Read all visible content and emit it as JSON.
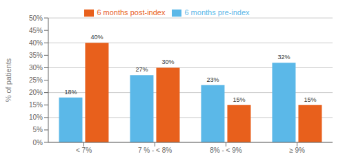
{
  "chart_data": {
    "type": "bar",
    "categories": [
      "< 7%",
      "7 % - < 8%",
      "8% - < 9%",
      "≥ 9%"
    ],
    "series": [
      {
        "name": "6 months pre-index",
        "color": "#5BB8E8",
        "values": [
          18,
          27,
          23,
          32
        ],
        "value_labels": [
          "18%",
          "27%",
          "23%",
          "32%"
        ]
      },
      {
        "name": "6 months post-index",
        "color": "#E8601C",
        "values": [
          40,
          30,
          15,
          15
        ],
        "value_labels": [
          "40%",
          "30%",
          "15%",
          "15%"
        ]
      }
    ],
    "ylabel": "% of patients",
    "ylim": [
      0,
      50
    ],
    "yticks": [
      {
        "value": 0,
        "label": "0%"
      },
      {
        "value": 5,
        "label": "5%"
      },
      {
        "value": 10,
        "label": "10%"
      },
      {
        "value": 15,
        "label": "15%"
      },
      {
        "value": 20,
        "label": "20%"
      },
      {
        "value": 25,
        "label": "25%"
      },
      {
        "value": 30,
        "label": "30%"
      },
      {
        "value": 35,
        "label": "35%"
      },
      {
        "value": 40,
        "label": "40%"
      },
      {
        "value": 45,
        "label": "45%"
      },
      {
        "value": 50,
        "label": "50%"
      }
    ],
    "grid": true,
    "legend": "top",
    "data_labels": true
  }
}
